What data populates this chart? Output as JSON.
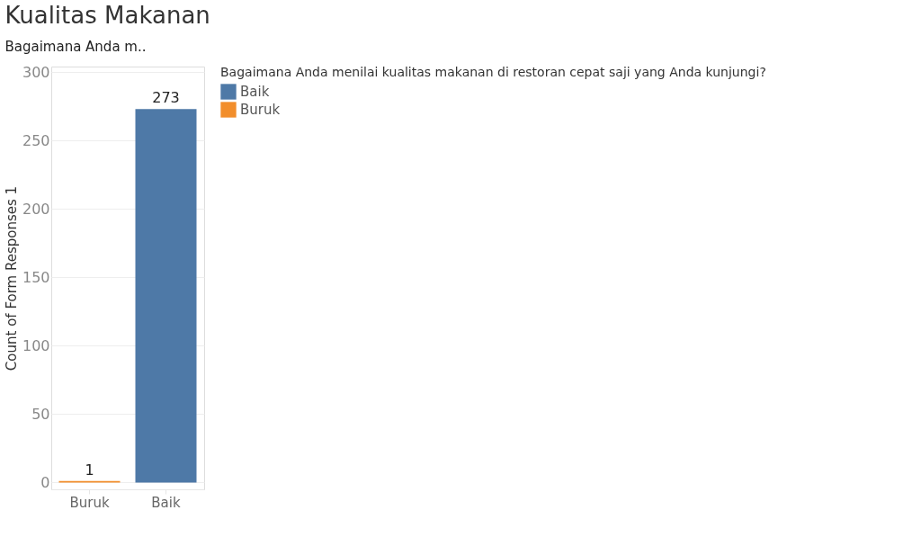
{
  "chart_data": {
    "type": "bar",
    "title": "Kualitas Makanan",
    "subtitle": "Bagaimana Anda m..",
    "ylabel": "Count of Form Responses 1",
    "legend_title": "Bagaimana Anda menilai kualitas makanan di restoran cepat saji yang Anda kunjungi?",
    "categories": [
      "Buruk",
      "Baik"
    ],
    "series": [
      {
        "name": "Baik",
        "color": "#4e79a7",
        "values": [
          null,
          273
        ]
      },
      {
        "name": "Buruk",
        "color": "#f28e2b",
        "values": [
          1,
          null
        ]
      }
    ],
    "ylim": [
      -5,
      304
    ],
    "yticks": [
      0,
      50,
      100,
      150,
      200,
      250,
      300
    ],
    "grid": "y",
    "legend": "top right",
    "data_labels": true
  }
}
